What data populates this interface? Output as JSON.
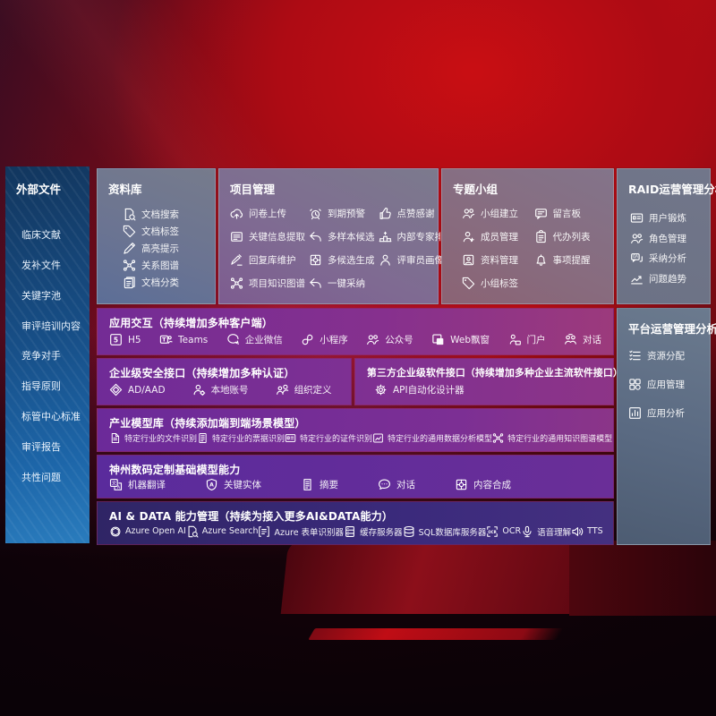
{
  "colors": {
    "background_red": "#b90d14",
    "sidebar_blue_top": "#12365e",
    "sidebar_blue_bottom": "#2a7cbd",
    "panel_gray": "#6f7587",
    "purple_row": "#7b2e97",
    "indigo_row": "#3b2a7c",
    "text": "#ffffff"
  },
  "sidebar": {
    "title": "外部文件",
    "items": [
      {
        "label": "临床文献"
      },
      {
        "label": "发补文件"
      },
      {
        "label": "关键字池"
      },
      {
        "label": "审评培训内容"
      },
      {
        "label": "竞争对手"
      },
      {
        "label": "指导原则"
      },
      {
        "label": "标管中心标准"
      },
      {
        "label": "审评报告"
      },
      {
        "label": "共性问题"
      }
    ]
  },
  "panels": {
    "library": {
      "title": "资料库",
      "items": [
        {
          "label": "文档搜索",
          "icon": "doc-search"
        },
        {
          "label": "文档标签",
          "icon": "tag"
        },
        {
          "label": "高亮提示",
          "icon": "highlight-pen"
        },
        {
          "label": "关系图谱",
          "icon": "relation-graph"
        },
        {
          "label": "文档分类",
          "icon": "doc-category"
        }
      ]
    },
    "project": {
      "title": "项目管理",
      "items": [
        {
          "label": "问卷上传",
          "icon": "cloud-upload"
        },
        {
          "label": "关键信息提取",
          "icon": "key-info-card"
        },
        {
          "label": "回复库维护",
          "icon": "edit-pencil"
        },
        {
          "label": "项目知识图谱",
          "icon": "relation-graph"
        },
        {
          "label": "到期预警",
          "icon": "alarm"
        },
        {
          "label": "多样本候选",
          "icon": "reply-arrow"
        },
        {
          "label": "多候选生成",
          "icon": "puzzle"
        },
        {
          "label": "一键采纳",
          "icon": "reply-arrow"
        },
        {
          "label": "点赞感谢",
          "icon": "thumb-up"
        },
        {
          "label": "内部专家排名",
          "icon": "ranking-podium"
        },
        {
          "label": "评审员画像",
          "icon": "person"
        }
      ]
    },
    "group": {
      "title": "专题小组",
      "items": [
        {
          "label": "小组建立",
          "icon": "people"
        },
        {
          "label": "成员管理",
          "icon": "person-add"
        },
        {
          "label": "资料管理",
          "icon": "album"
        },
        {
          "label": "小组标签",
          "icon": "tag"
        },
        {
          "label": "留言板",
          "icon": "message-board"
        },
        {
          "label": "代办列表",
          "icon": "clipboard"
        },
        {
          "label": "事项提醒",
          "icon": "bell"
        }
      ]
    },
    "raid": {
      "title": "RAID运营管理分析",
      "items": [
        {
          "label": "用户锻炼",
          "icon": "id-card"
        },
        {
          "label": "角色管理",
          "icon": "people"
        },
        {
          "label": "采纳分析",
          "icon": "chat-qa"
        },
        {
          "label": "问题趋势",
          "icon": "trend-chart"
        }
      ]
    },
    "platform": {
      "title": "平台运营管理分析",
      "items": [
        {
          "label": "资源分配",
          "icon": "check-list"
        },
        {
          "label": "应用管理",
          "icon": "app-grid"
        },
        {
          "label": "应用分析",
          "icon": "bar-chart"
        }
      ]
    }
  },
  "rows": {
    "interaction": {
      "title": "应用交互（持续增加多种客户端）",
      "items": [
        {
          "label": "H5",
          "icon": "h5"
        },
        {
          "label": "Teams",
          "icon": "teams"
        },
        {
          "label": "企业微信",
          "icon": "wechat-work"
        },
        {
          "label": "小程序",
          "icon": "miniprogram"
        },
        {
          "label": "公众号",
          "icon": "people"
        },
        {
          "label": "Web飘窗",
          "icon": "web-window"
        },
        {
          "label": "门户",
          "icon": "portal"
        },
        {
          "label": "对话",
          "icon": "dialog"
        }
      ]
    },
    "security": {
      "title": "企业级安全接口（持续增加多种认证）",
      "items": [
        {
          "label": "AD/AAD",
          "icon": "shield-diamond"
        },
        {
          "label": "本地账号",
          "icon": "person-gear"
        },
        {
          "label": "组织定义",
          "icon": "org-people"
        }
      ]
    },
    "thirdparty": {
      "title": "第三方企业级软件接口（持续增加多种企业主流软件接口）",
      "items": [
        {
          "label": "API自动化设计器",
          "icon": "api-gear"
        }
      ]
    },
    "models": {
      "title": "产业模型库（持续添加端到端场景模型）",
      "items": [
        {
          "label": "特定行业的文件识别",
          "icon": "doc-scan"
        },
        {
          "label": "特定行业的票据识别",
          "icon": "bill-doc"
        },
        {
          "label": "特定行业的证件识别",
          "icon": "id-card"
        },
        {
          "label": "特定行业的通用数据分析模型",
          "icon": "image-chart"
        },
        {
          "label": "特定行业的通用知识图谱模型",
          "icon": "relation-graph"
        }
      ]
    },
    "foundation": {
      "title": "神州数码定制基础模型能力",
      "items": [
        {
          "label": "机器翻译",
          "icon": "translate"
        },
        {
          "label": "关键实体",
          "icon": "shield-a"
        },
        {
          "label": "摘要",
          "icon": "summary-doc"
        },
        {
          "label": "对话",
          "icon": "chat-bubble"
        },
        {
          "label": "内容合成",
          "icon": "puzzle"
        }
      ]
    },
    "aidata": {
      "title": "AI & DATA 能力管理（持续为接入更多AI&DATA能力）",
      "items": [
        {
          "label": "Azure Open AI",
          "icon": "openai"
        },
        {
          "label": "Azure Search",
          "icon": "doc-search"
        },
        {
          "label": "Azure 表单识别器",
          "icon": "form-recognizer"
        },
        {
          "label": "缓存服务器",
          "icon": "cache-server"
        },
        {
          "label": "SQL数据库服务器",
          "icon": "sql-database"
        },
        {
          "label": "OCR",
          "icon": "ocr"
        },
        {
          "label": "语音理解",
          "icon": "speech-mic"
        },
        {
          "label": "TTS",
          "icon": "tts-speaker"
        }
      ]
    }
  }
}
